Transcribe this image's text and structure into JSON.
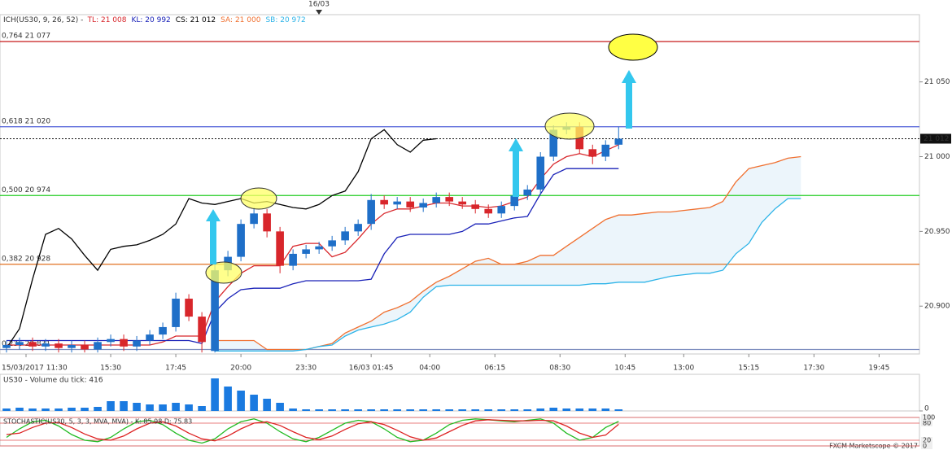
{
  "chart_data": [
    {
      "type": "candlestick",
      "title": "ICH(US30, 9, 26, 52) -",
      "legend": [
        "TL: 21 008",
        "KL: 20 992",
        "CS: 21 012",
        "SA: 21 000",
        "SB: 20 972"
      ],
      "day_marker": "16/03",
      "xlim": [
        -0.5,
        70.1
      ],
      "xticks": [
        {
          "value": 1.5,
          "label": "15/03/2017 11:30"
        },
        {
          "value": 8,
          "label": "15:30"
        },
        {
          "value": 13,
          "label": "17:45"
        },
        {
          "value": 18,
          "label": "20:00"
        },
        {
          "value": 23,
          "label": "23:30"
        },
        {
          "value": 28,
          "label": "16/03 01:45"
        },
        {
          "value": 32.5,
          "label": "04:00"
        },
        {
          "value": 37.5,
          "label": "06:15"
        },
        {
          "value": 42.5,
          "label": "08:30"
        },
        {
          "value": 47.5,
          "label": "10:45"
        },
        {
          "value": 52,
          "label": "13:00"
        },
        {
          "value": 57,
          "label": "15:15"
        },
        {
          "value": 62,
          "label": "17:30"
        },
        {
          "value": 67,
          "label": "19:45"
        }
      ],
      "ylim": [
        20868,
        21095
      ],
      "yticks": [
        {
          "value": 20900,
          "label": "20.900"
        },
        {
          "value": 20950,
          "label": "20.950"
        },
        {
          "value": 21000,
          "label": "21 000"
        },
        {
          "value": 21050,
          "label": "21 050"
        }
      ],
      "up_color": "#1f6fc8",
      "down_color": "#d8262b",
      "open": [
        20872,
        20874,
        20876,
        20873,
        20875,
        20872,
        20874,
        20871,
        20876,
        20878,
        20873,
        20877,
        20881,
        20886,
        20905,
        20893,
        20870,
        20924,
        20933,
        20955,
        20962,
        20950,
        20927,
        20935,
        20938,
        20940,
        20944,
        20950,
        20955,
        20971,
        20968,
        20970,
        20966,
        20969,
        20973,
        20970,
        20968,
        20965,
        20962,
        20967,
        20974,
        20978,
        21000,
        21018,
        21020,
        21005,
        21000,
        21008
      ],
      "high": [
        20877,
        20879,
        20879,
        20878,
        20878,
        20877,
        20877,
        20879,
        20881,
        20881,
        20880,
        20884,
        20889,
        20909,
        20908,
        20896,
        20928,
        20937,
        20958,
        20966,
        20965,
        20953,
        20938,
        20941,
        20943,
        20947,
        20953,
        20958,
        20975,
        20974,
        20973,
        20973,
        20972,
        20976,
        20976,
        20973,
        20971,
        20968,
        20970,
        20977,
        20981,
        21003,
        21021,
        21023,
        21023,
        21008,
        21011,
        21020
      ],
      "low": [
        20869,
        20871,
        20870,
        20870,
        20869,
        20869,
        20869,
        20869,
        20873,
        20870,
        20870,
        20874,
        20878,
        20883,
        20890,
        20869,
        20869,
        20920,
        20930,
        20952,
        20946,
        20922,
        20924,
        20932,
        20935,
        20937,
        20941,
        20947,
        20951,
        20965,
        20965,
        20963,
        20963,
        20966,
        20967,
        20965,
        20962,
        20959,
        20959,
        20964,
        20971,
        20975,
        20997,
        21015,
        21002,
        20995,
        20997,
        21005
      ],
      "close": [
        20874,
        20876,
        20873,
        20875,
        20872,
        20874,
        20871,
        20876,
        20878,
        20873,
        20877,
        20881,
        20886,
        20905,
        20893,
        20876,
        20924,
        20933,
        20955,
        20962,
        20950,
        20927,
        20935,
        20938,
        20940,
        20944,
        20950,
        20955,
        20971,
        20968,
        20970,
        20966,
        20969,
        20973,
        20970,
        20968,
        20965,
        20962,
        20967,
        20974,
        20978,
        21000,
        21018,
        21020,
        21005,
        21000,
        21008,
        21012
      ],
      "series": [
        {
          "color": "#d8262b",
          "values": [
            20874,
            20874,
            20874,
            20874,
            20874,
            20874,
            20874,
            20874,
            20874,
            20874,
            20874,
            20874,
            20876,
            20880,
            20880,
            20880,
            20903,
            20913,
            20922,
            20927,
            20927,
            20927,
            20940,
            20942,
            20942,
            20933,
            20936,
            20945,
            20955,
            20962,
            20965,
            20965,
            20967,
            20969,
            20969,
            20967,
            20967,
            20966,
            20967,
            20970,
            20973,
            20985,
            20995,
            21000,
            21002,
            21000,
            21004,
            21008,
            null,
            null,
            null,
            null,
            null,
            null,
            null,
            null,
            null,
            null,
            null,
            null,
            null,
            null
          ]
        },
        {
          "color": "#1a22b8",
          "values": [
            20877,
            20877,
            20877,
            20877,
            20877,
            20877,
            20877,
            20877,
            20877,
            20877,
            20877,
            20877,
            20877,
            20877,
            20877,
            20875,
            20896,
            20905,
            20911,
            20912,
            20912,
            20912,
            20915,
            20917,
            20917,
            20917,
            20917,
            20917,
            20918,
            20935,
            20946,
            20948,
            20948,
            20948,
            20948,
            20950,
            20955,
            20955,
            20957,
            20959,
            20960,
            20975,
            20988,
            20992,
            20992,
            20992,
            20992,
            20992,
            null,
            null,
            null,
            null,
            null,
            null,
            null,
            null,
            null,
            null,
            null,
            null,
            null,
            null
          ]
        },
        {
          "color": "#000000",
          "values": [
            20872,
            20885,
            20918,
            20948,
            20952,
            20945,
            20934,
            20924,
            20938,
            20940,
            20941,
            20944,
            20948,
            20955,
            20972,
            20969,
            20968,
            20970,
            20972,
            20969,
            20970,
            20968,
            20966,
            20965,
            20968,
            20974,
            20977,
            20990,
            21012,
            21018,
            21008,
            21003,
            21011,
            21012,
            null,
            null,
            null,
            null,
            null,
            null,
            null,
            null,
            null,
            null,
            null,
            null,
            null,
            null,
            null,
            null,
            null,
            null,
            null,
            null,
            null,
            null,
            null,
            null,
            null,
            null,
            null,
            null
          ]
        },
        {
          "color": "#f07030",
          "values": [
            null,
            null,
            null,
            null,
            null,
            null,
            null,
            null,
            null,
            null,
            null,
            null,
            null,
            null,
            null,
            null,
            20877,
            20877,
            20877,
            20877,
            20871,
            20871,
            20871,
            20871,
            20873,
            20875,
            20882,
            20886,
            20890,
            20896,
            20899,
            20903,
            20910,
            20916,
            20920,
            20925,
            20930,
            20932,
            20928,
            20928,
            20930,
            20934,
            20934,
            20940,
            20946,
            20952,
            20958,
            20961,
            20961,
            20962,
            20963,
            20963,
            20964,
            20965,
            20966,
            20970,
            20983,
            20992,
            20994,
            20996,
            20999,
            21000
          ]
        },
        {
          "color": "#2eb4e8",
          "values": [
            null,
            null,
            null,
            null,
            null,
            null,
            null,
            null,
            null,
            null,
            null,
            null,
            null,
            null,
            null,
            null,
            20870,
            20870,
            20870,
            20870,
            20870,
            20870,
            20870,
            20871,
            20873,
            20874,
            20880,
            20884,
            20886,
            20888,
            20891,
            20896,
            20906,
            20913,
            20914,
            20914,
            20914,
            20914,
            20914,
            20914,
            20914,
            20914,
            20914,
            20914,
            20914,
            20915,
            20915,
            20916,
            20916,
            20916,
            20918,
            20920,
            20921,
            20922,
            20922,
            20924,
            20935,
            20942,
            20956,
            20965,
            20972,
            20972
          ]
        }
      ],
      "levels": [
        {
          "value": 21077,
          "label": "0,764 21 077",
          "color": "#c00000"
        },
        {
          "value": 21020,
          "label": "0,618 21 020",
          "color": "#5060d8"
        },
        {
          "value": 20974,
          "label": "0,500 20 974",
          "color": "#22cc22"
        },
        {
          "value": 20928,
          "label": "0,382 20 928",
          "color": "#e07020"
        },
        {
          "value": 20871,
          "label": "0,236 20 871",
          "color": "#8090c0"
        }
      ],
      "current_price": {
        "value": 21012,
        "label": "21 012"
      }
    },
    {
      "type": "bar",
      "title": "US30 - Volume du tick: 416",
      "color": "#1a7ae0",
      "values": [
        624,
        832,
        624,
        624,
        624,
        832,
        832,
        1040,
        2496,
        2496,
        2080,
        1664,
        1664,
        2080,
        1664,
        1248,
        8320,
        6240,
        5200,
        4160,
        3120,
        2080,
        624,
        416,
        416,
        416,
        416,
        416,
        416,
        416,
        416,
        416,
        416,
        416,
        416,
        416,
        416,
        416,
        416,
        416,
        416,
        624,
        832,
        624,
        624,
        624,
        624,
        416
      ],
      "ylim": [
        0,
        9360
      ],
      "yticks": [
        0
      ]
    },
    {
      "type": "line",
      "title": "STOCHASTIC(US30, 5, 3, 3, MVA, MVA) - K: 85.98 D: 75.83",
      "series": [
        {
          "color": "#22bb22",
          "values": [
            30,
            60,
            85,
            90,
            70,
            40,
            20,
            15,
            30,
            60,
            85,
            90,
            75,
            45,
            20,
            10,
            25,
            60,
            85,
            95,
            80,
            50,
            25,
            15,
            30,
            55,
            80,
            90,
            85,
            60,
            30,
            15,
            20,
            45,
            75,
            90,
            95,
            92,
            88,
            85,
            90,
            95,
            80,
            45,
            20,
            30,
            65,
            86
          ]
        },
        {
          "color": "#dd2222",
          "values": [
            40,
            45,
            65,
            80,
            82,
            65,
            42,
            25,
            20,
            35,
            60,
            80,
            85,
            70,
            45,
            25,
            18,
            35,
            60,
            80,
            85,
            72,
            50,
            30,
            22,
            35,
            58,
            78,
            85,
            75,
            55,
            32,
            20,
            28,
            50,
            72,
            88,
            92,
            90,
            88,
            88,
            90,
            88,
            70,
            45,
            30,
            38,
            76
          ]
        }
      ],
      "ylim": [
        0,
        100
      ],
      "yticks": [
        0,
        20,
        80,
        100
      ]
    }
  ],
  "footer": "FXCM Marketscope © 2017"
}
